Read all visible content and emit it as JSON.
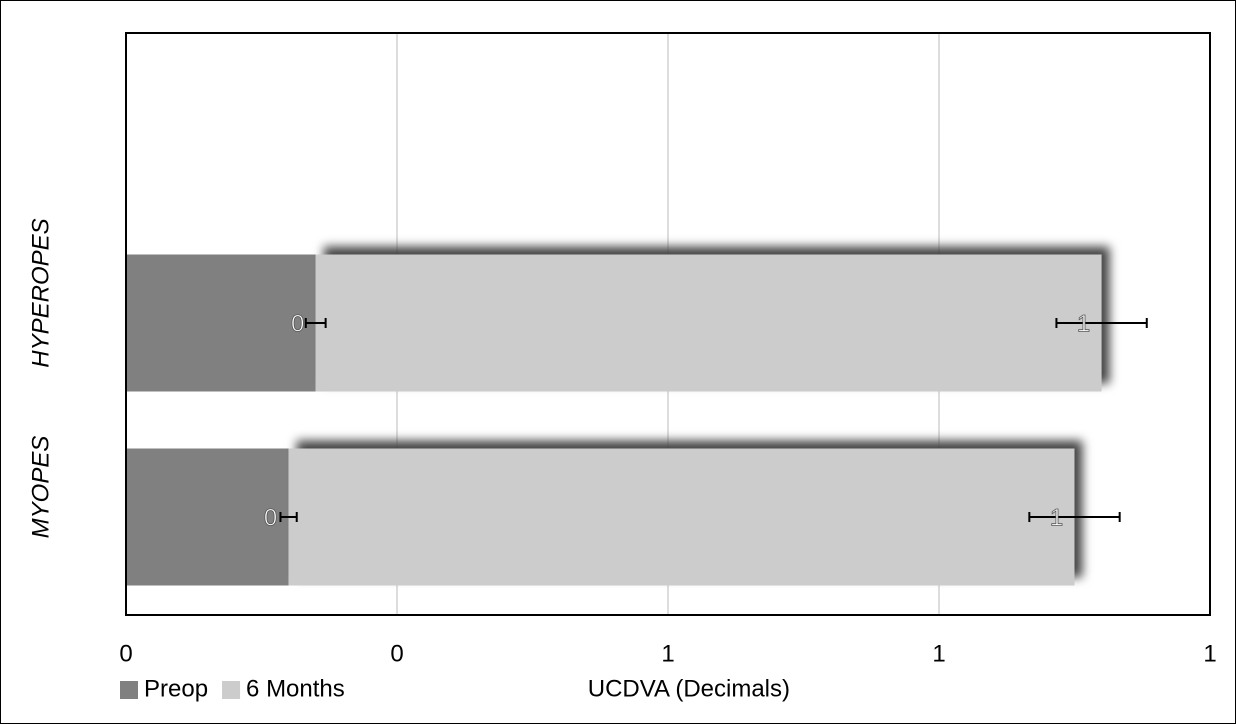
{
  "chart_data": {
    "type": "bar",
    "orientation": "horizontal",
    "stacked": true,
    "xlabel": "UCDVA (Decimals)",
    "categories": [
      "MYOPES",
      "HYPEROPES"
    ],
    "series": [
      {
        "name": "Preop",
        "color": "#808080",
        "values": [
          0.18,
          0.21
        ],
        "errors": [
          0.009,
          0.011
        ],
        "value_labels": [
          "0",
          "0"
        ]
      },
      {
        "name": "6 Months",
        "color": "#cccccc",
        "values": [
          0.87,
          0.87
        ],
        "errors": [
          0.05,
          0.05
        ],
        "value_labels": [
          "1",
          "1"
        ]
      }
    ],
    "xlim": [
      0,
      1.2
    ],
    "xticks": [
      0,
      {
        "value": 0.3,
        "label": "0"
      },
      {
        "value": 0.6,
        "label": "1"
      },
      {
        "value": 0.9,
        "label": "1"
      },
      {
        "value": 1.2,
        "label": "1"
      }
    ],
    "grid": true,
    "legend": "bottom-left"
  }
}
